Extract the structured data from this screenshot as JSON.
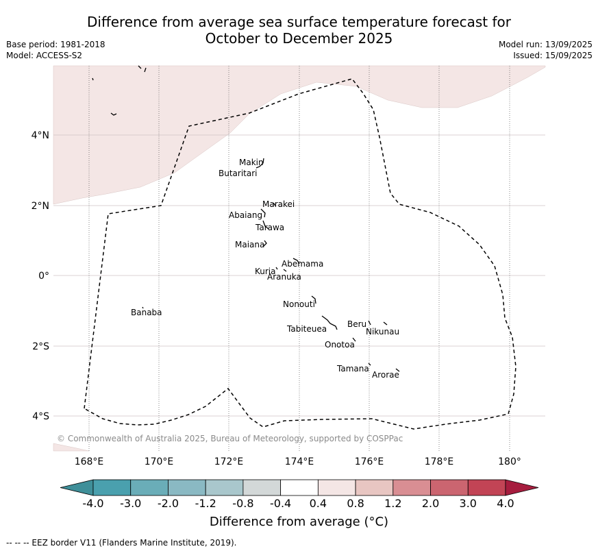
{
  "title_line1": "Difference from average sea surface temperature forecast for",
  "title_line2": "October to December 2025",
  "base_period": "Base period: 1981-2018",
  "model": "Model: ACCESS-S2",
  "model_run": "Model run: 13/09/2025",
  "issued": "Issued: 15/09/2025",
  "copyright": "© Commonwealth of Australia 2025, Bureau of Meteorology, supported by COSPPac",
  "lon_labels": [
    "168°E",
    "170°E",
    "172°E",
    "174°E",
    "176°E",
    "178°E",
    "180°"
  ],
  "lat_labels": [
    "4°N",
    "2°N",
    "0°",
    "2°S",
    "4°S"
  ],
  "islands": [
    {
      "name": "Makin"
    },
    {
      "name": "Butaritari"
    },
    {
      "name": "Marakei"
    },
    {
      "name": "Abaiang"
    },
    {
      "name": "Tarawa"
    },
    {
      "name": "Maiana"
    },
    {
      "name": "Abemama"
    },
    {
      "name": "Kuria"
    },
    {
      "name": "Aranuka"
    },
    {
      "name": "Nonouti"
    },
    {
      "name": "Banaba"
    },
    {
      "name": "Tabiteuea"
    },
    {
      "name": "Beru"
    },
    {
      "name": "Nikunau"
    },
    {
      "name": "Onotoa"
    },
    {
      "name": "Tamana"
    },
    {
      "name": "Arorae"
    }
  ],
  "colorbar": {
    "ticks": [
      "-4.0",
      "-3.0",
      "-2.0",
      "-1.2",
      "-0.8",
      "-0.4",
      "0.4",
      "0.8",
      "1.2",
      "2.0",
      "3.0",
      "4.0"
    ],
    "colors": [
      "#3f8f99",
      "#4aa0ae",
      "#6aadb8",
      "#8ab9c3",
      "#a9c7cc",
      "#d3d8d8",
      "#ffffff",
      "#f4e6e5",
      "#e8c6c2",
      "#d98e93",
      "#cb6570",
      "#c24455",
      "#a61d3e"
    ],
    "label": "Difference from average (°C)"
  },
  "anomaly_fill_color": "#f4e6e5",
  "footer": "--  --  -- EEZ border V11 (Flanders Marine Institute, 2019)."
}
